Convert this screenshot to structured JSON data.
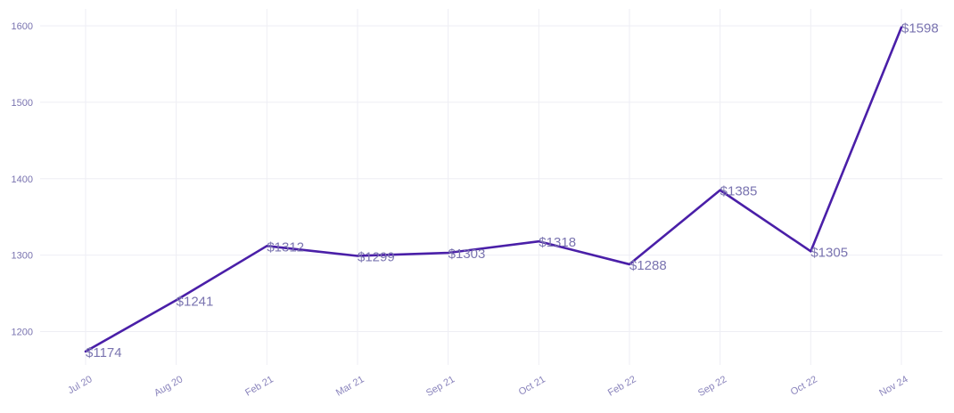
{
  "chart_data": {
    "type": "line",
    "title": "",
    "xlabel": "",
    "ylabel": "",
    "categories": [
      "Jul 20",
      "Aug 20",
      "Feb 21",
      "Mar 21",
      "Sep 21",
      "Oct 21",
      "Feb 22",
      "Sep 22",
      "Oct 22",
      "Nov 24"
    ],
    "series": [
      {
        "values": [
          1174,
          1241,
          1312,
          1299,
          1303,
          1318,
          1288,
          1385,
          1305,
          1598
        ],
        "data_labels": [
          "$1174",
          "$1241",
          "$1312",
          "$1299",
          "$1303",
          "$1318",
          "$1288",
          "$1385",
          "$1305",
          "$1598"
        ],
        "color": "#4a1fa8"
      }
    ],
    "yticks": [
      1200,
      1300,
      1400,
      1500,
      1600
    ],
    "ylim": [
      1150,
      1620
    ],
    "grid": true,
    "legend": "none"
  }
}
